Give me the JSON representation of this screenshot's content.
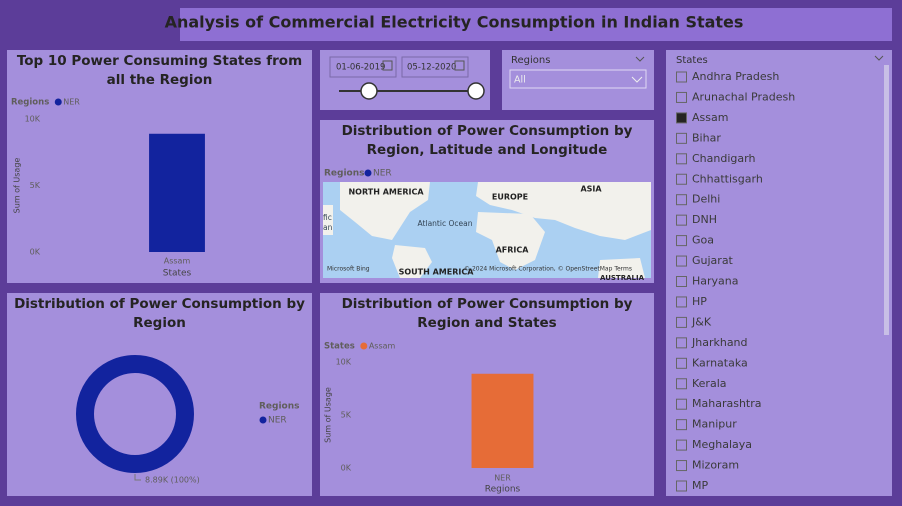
{
  "title": "Analysis of Commercial Electricity Consumption in Indian States",
  "date_slicer": {
    "start": "01-06-2019",
    "end": "05-12-2020"
  },
  "regions_slicer": {
    "label": "Regions",
    "value": "All"
  },
  "states_slicer": {
    "label": "States",
    "items": [
      {
        "label": "Andhra Pradesh",
        "checked": false
      },
      {
        "label": "Arunachal Pradesh",
        "checked": false
      },
      {
        "label": "Assam",
        "checked": true
      },
      {
        "label": "Bihar",
        "checked": false
      },
      {
        "label": "Chandigarh",
        "checked": false
      },
      {
        "label": "Chhattisgarh",
        "checked": false
      },
      {
        "label": "Delhi",
        "checked": false
      },
      {
        "label": "DNH",
        "checked": false
      },
      {
        "label": "Goa",
        "checked": false
      },
      {
        "label": "Gujarat",
        "checked": false
      },
      {
        "label": "Haryana",
        "checked": false
      },
      {
        "label": "HP",
        "checked": false
      },
      {
        "label": "J&K",
        "checked": false
      },
      {
        "label": "Jharkhand",
        "checked": false
      },
      {
        "label": "Karnataka",
        "checked": false
      },
      {
        "label": "Kerala",
        "checked": false
      },
      {
        "label": "Maharashtra",
        "checked": false
      },
      {
        "label": "Manipur",
        "checked": false
      },
      {
        "label": "Meghalaya",
        "checked": false
      },
      {
        "label": "Mizoram",
        "checked": false
      },
      {
        "label": "MP",
        "checked": false
      }
    ]
  },
  "map": {
    "title": "Distribution of Power Consumption by Region, Latitude and Longitude",
    "legend_title": "Regions",
    "legend": "NER",
    "labels": [
      "NORTH AMERICA",
      "EUROPE",
      "ASIA",
      "Atlantic Ocean",
      "AFRICA",
      "SOUTH AMERICA",
      "AUSTRALIA",
      "fic",
      "an"
    ],
    "brand": "Microsoft Bing",
    "attribution": "© 2024 Microsoft Corporation, © OpenStreetMap  Terms"
  },
  "chart_data": [
    {
      "type": "bar",
      "title": "Top 10 Power Consuming States from all the Region",
      "legend_title": "Regions",
      "categories": [
        "Assam"
      ],
      "series": [
        {
          "name": "NER",
          "color": "#12239e",
          "values": [
            8890
          ]
        }
      ],
      "x_label": "States",
      "y_label": "Sum of Usage",
      "ylim": [
        0,
        10000
      ],
      "yticks": [
        {
          "value": 0,
          "label": "0K"
        },
        {
          "value": 5000,
          "label": "5K"
        },
        {
          "value": 10000,
          "label": "10K"
        }
      ]
    },
    {
      "type": "pie",
      "donut": true,
      "title": "Distribution of Power Consumption by Region",
      "legend_title": "Regions",
      "categories": [
        "NER"
      ],
      "values": [
        8890
      ],
      "value_labels": [
        "8.89K (100%)"
      ],
      "colors": [
        "#12239e"
      ]
    },
    {
      "type": "bar",
      "title": "Distribution of Power Consumption by Region and States",
      "legend_title": "States",
      "categories": [
        "NER"
      ],
      "series": [
        {
          "name": "Assam",
          "color": "#e66c37",
          "values": [
            8890
          ]
        }
      ],
      "x_label": "Regions",
      "y_label": "Sum of Usage",
      "ylim": [
        0,
        10000
      ],
      "yticks": [
        {
          "value": 0,
          "label": "0K"
        },
        {
          "value": 5000,
          "label": "5K"
        },
        {
          "value": 10000,
          "label": "10K"
        }
      ]
    }
  ]
}
